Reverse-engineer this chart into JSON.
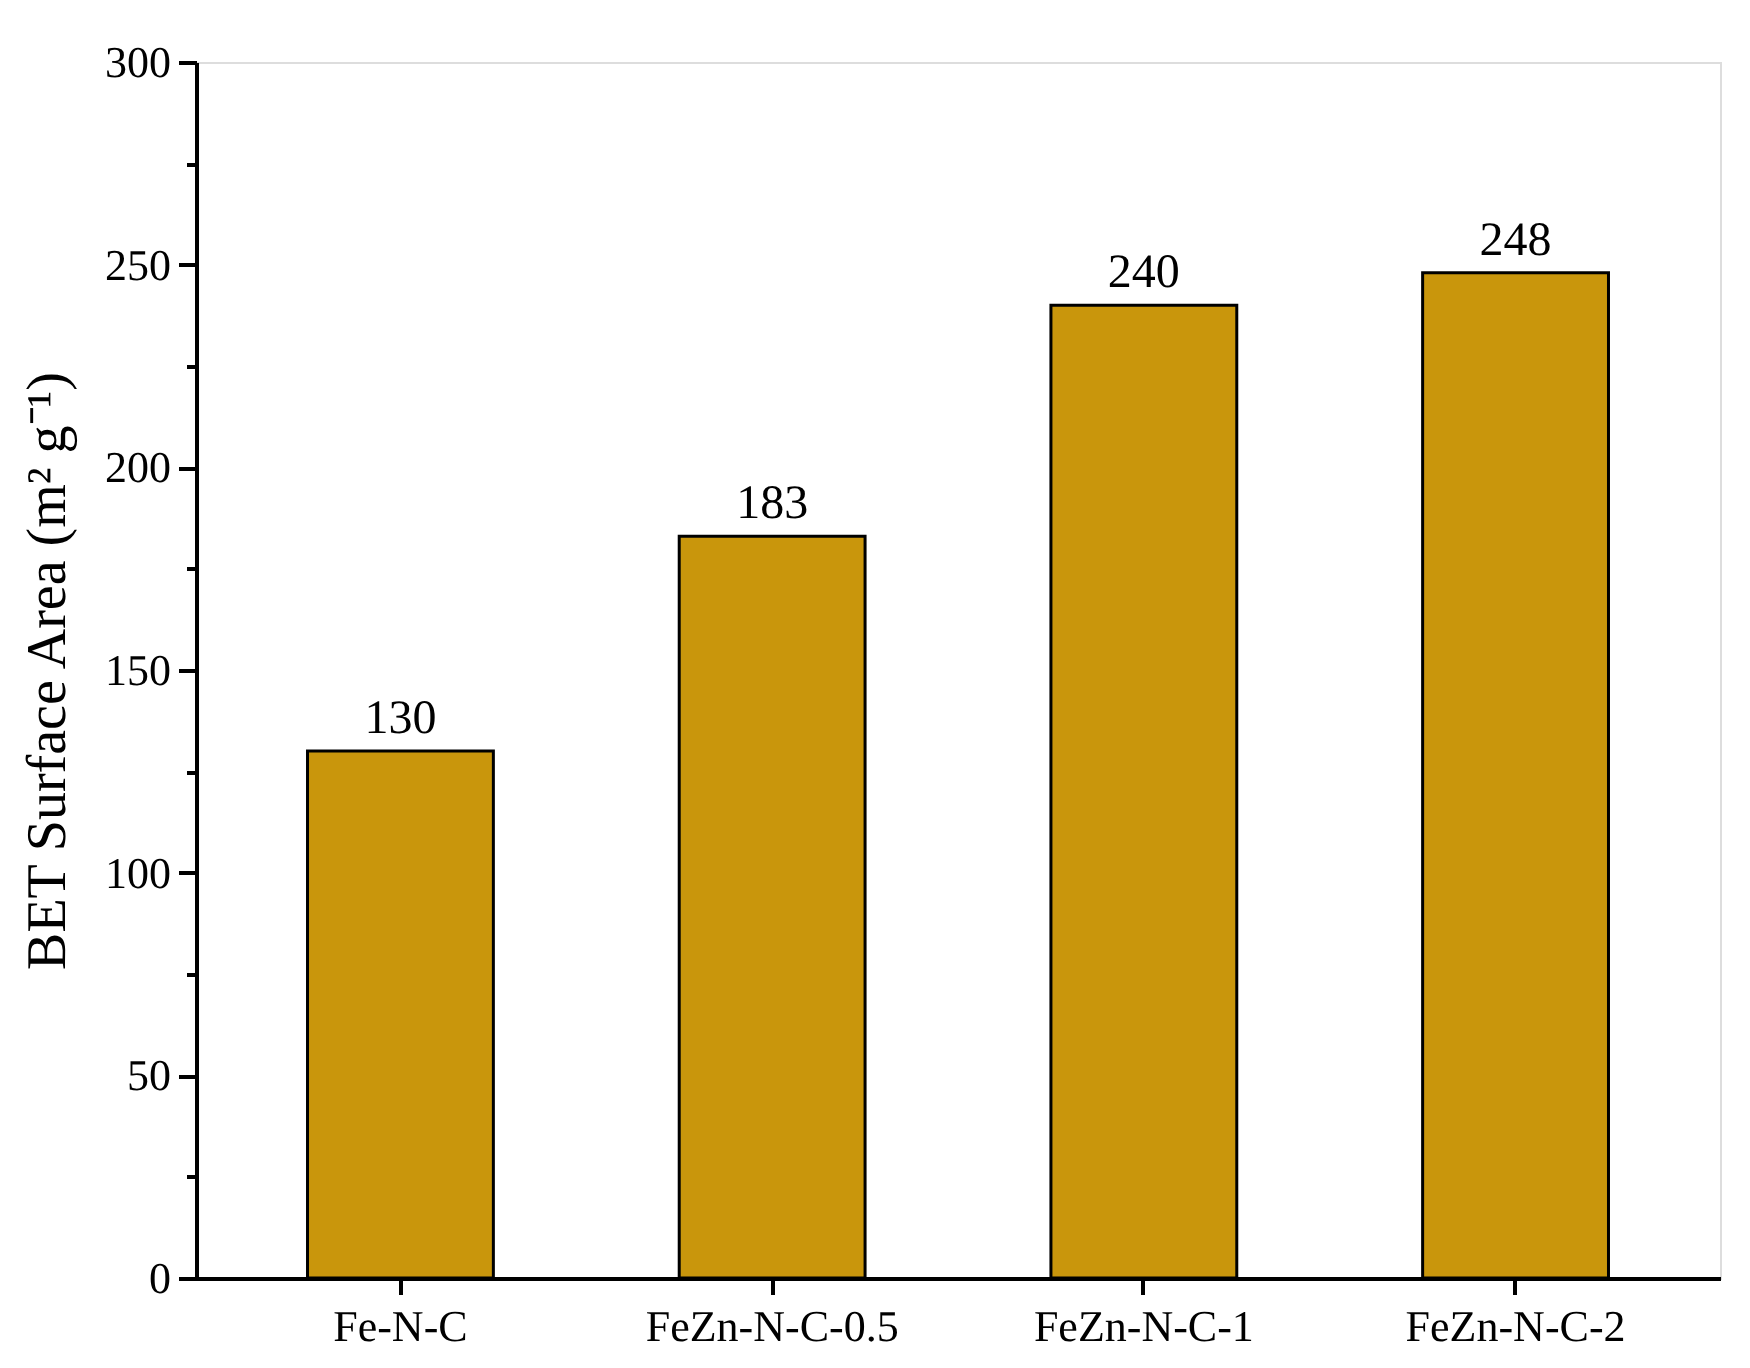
{
  "chart_data": {
    "type": "bar",
    "ylabel": "BET Surface Area (m² g⁻¹)",
    "categories": [
      "Fe-N-C",
      "FeZn-N-C-0.5",
      "FeZn-N-C-1",
      "FeZn-N-C-2"
    ],
    "values": [
      130,
      183,
      240,
      248
    ],
    "color": "#c9960c",
    "data_labels": true,
    "ylim": [
      0,
      300
    ],
    "yticks": [
      0,
      {
        "value": 25,
        "label": null
      },
      50,
      {
        "value": 75,
        "label": null
      },
      100,
      {
        "value": 125,
        "label": null
      },
      150,
      {
        "value": 175,
        "label": null
      },
      200,
      {
        "value": 225,
        "label": null
      },
      250,
      {
        "value": 275,
        "label": null
      },
      300
    ],
    "grid": false
  }
}
